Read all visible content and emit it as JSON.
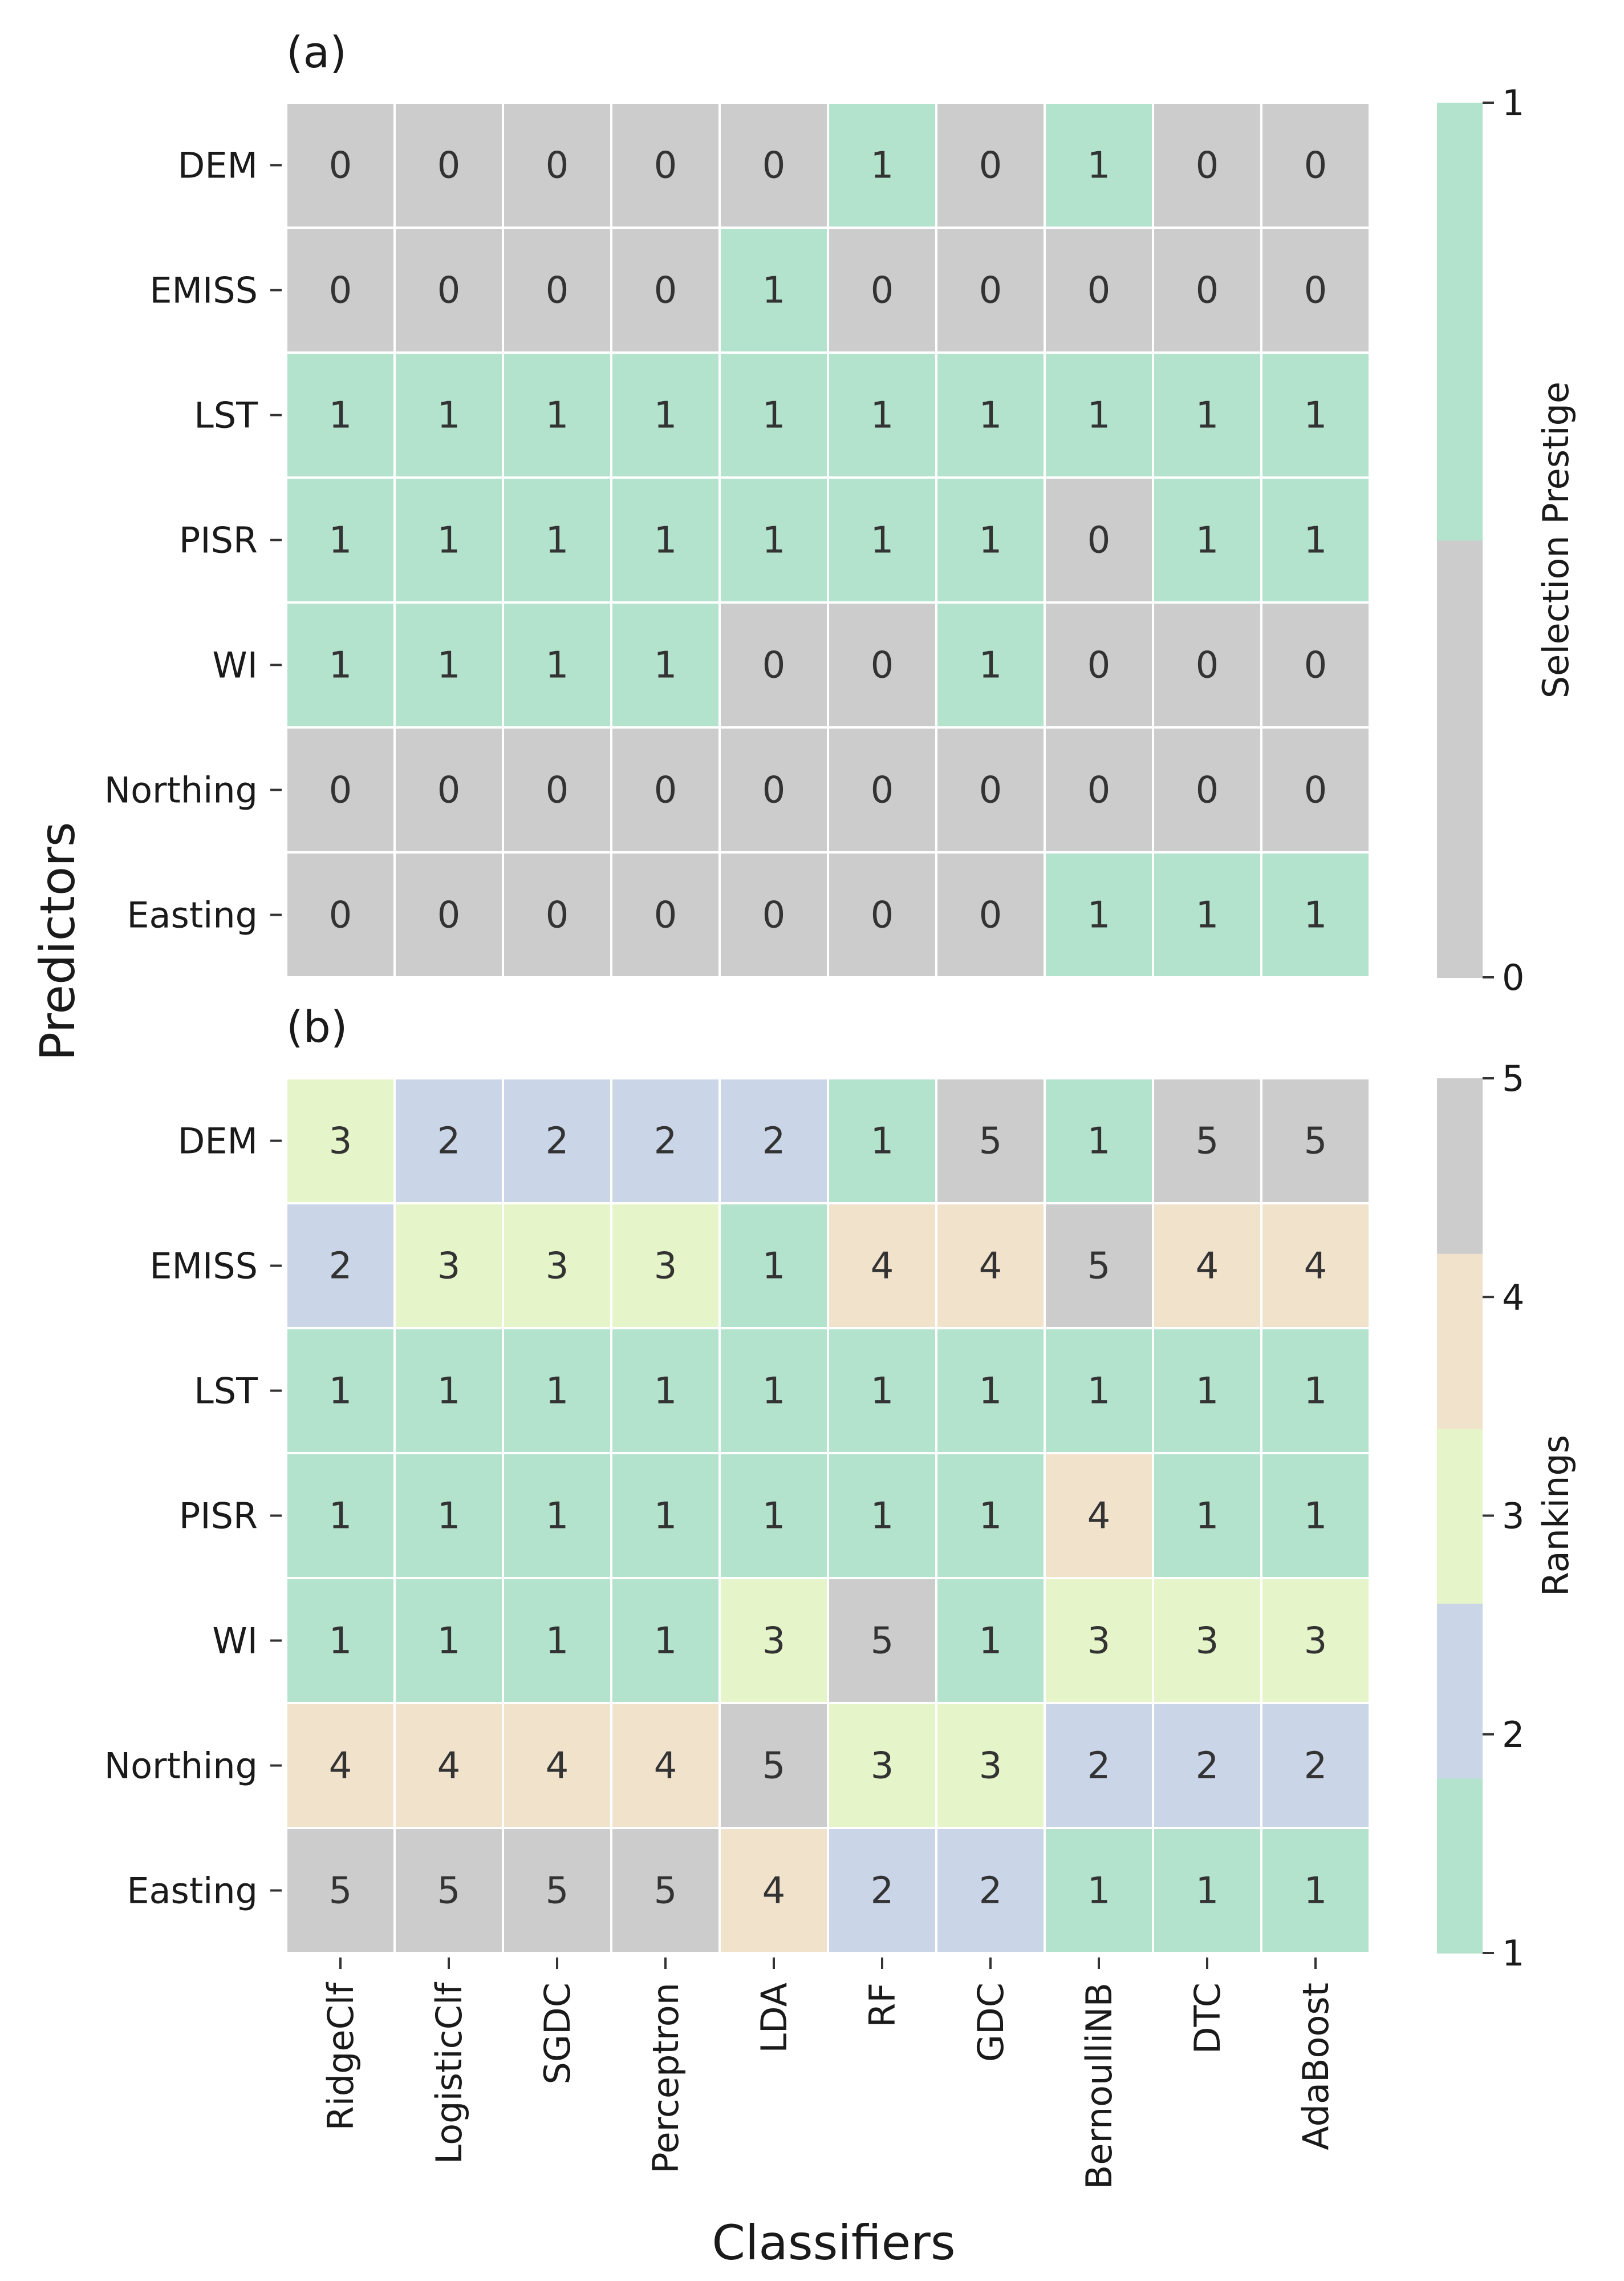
{
  "figure": {
    "ylabel": "Predictors",
    "xlabel": "Classifiers"
  },
  "chart_data": [
    {
      "type": "heatmap",
      "panel_label": "(a)",
      "rows": [
        "DEM",
        "EMISS",
        "LST",
        "PISR",
        "WI",
        "Northing",
        "Easting"
      ],
      "columns": [
        "RidgeClf",
        "LogisticClf",
        "SGDC",
        "Perceptron",
        "LDA",
        "RF",
        "GDC",
        "BernoulliNB",
        "DTC",
        "AdaBoost"
      ],
      "values": [
        [
          0,
          0,
          0,
          0,
          0,
          1,
          0,
          1,
          0,
          0
        ],
        [
          0,
          0,
          0,
          0,
          1,
          0,
          0,
          0,
          0,
          0
        ],
        [
          1,
          1,
          1,
          1,
          1,
          1,
          1,
          1,
          1,
          1
        ],
        [
          1,
          1,
          1,
          1,
          1,
          1,
          1,
          0,
          1,
          1
        ],
        [
          1,
          1,
          1,
          1,
          0,
          0,
          1,
          0,
          0,
          0
        ],
        [
          0,
          0,
          0,
          0,
          0,
          0,
          0,
          0,
          0,
          0
        ],
        [
          0,
          0,
          0,
          0,
          0,
          0,
          0,
          1,
          1,
          1
        ]
      ],
      "colorbar": {
        "label": "Selection Prestige",
        "ticks": [
          "0",
          "1"
        ],
        "range": [
          0,
          1
        ],
        "colors": {
          "0": "#cccccc",
          "1": "#b3e2cd"
        }
      }
    },
    {
      "type": "heatmap",
      "panel_label": "(b)",
      "rows": [
        "DEM",
        "EMISS",
        "LST",
        "PISR",
        "WI",
        "Northing",
        "Easting"
      ],
      "columns": [
        "RidgeClf",
        "LogisticClf",
        "SGDC",
        "Perceptron",
        "LDA",
        "RF",
        "GDC",
        "BernoulliNB",
        "DTC",
        "AdaBoost"
      ],
      "values": [
        [
          3,
          2,
          2,
          2,
          2,
          1,
          5,
          1,
          5,
          5
        ],
        [
          2,
          3,
          3,
          3,
          1,
          4,
          4,
          5,
          4,
          4
        ],
        [
          1,
          1,
          1,
          1,
          1,
          1,
          1,
          1,
          1,
          1
        ],
        [
          1,
          1,
          1,
          1,
          1,
          1,
          1,
          4,
          1,
          1
        ],
        [
          1,
          1,
          1,
          1,
          3,
          5,
          1,
          3,
          3,
          3
        ],
        [
          4,
          4,
          4,
          4,
          5,
          3,
          3,
          2,
          2,
          2
        ],
        [
          5,
          5,
          5,
          5,
          4,
          2,
          2,
          1,
          1,
          1
        ]
      ],
      "colorbar": {
        "label": "Rankings",
        "ticks": [
          "1",
          "2",
          "3",
          "4",
          "5"
        ],
        "range": [
          1,
          5
        ],
        "colors": {
          "1": "#b3e2cd",
          "2": "#cbd5e8",
          "3": "#e6f5c9",
          "4": "#f1e2cc",
          "5": "#cccccc"
        }
      }
    }
  ]
}
